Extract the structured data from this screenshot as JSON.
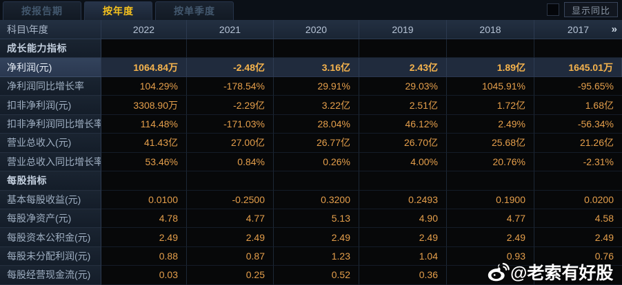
{
  "tabs": [
    {
      "label": "按报告期",
      "selected": false
    },
    {
      "label": "按年度",
      "selected": true
    },
    {
      "label": "按单季度",
      "selected": false
    }
  ],
  "controls": {
    "show_yoy_label": "显示同比",
    "yoy_checked": false
  },
  "table": {
    "corner_label": "科目\\年度",
    "years": [
      "2022",
      "2021",
      "2020",
      "2019",
      "2018",
      "2017"
    ],
    "more_years_icon": "»",
    "rows": [
      {
        "type": "section",
        "label": "成长能力指标",
        "values": [
          "",
          "",
          "",
          "",
          "",
          ""
        ]
      },
      {
        "type": "data",
        "highlight": true,
        "label": "净利润(元)",
        "values": [
          "1064.84万",
          "-2.48亿",
          "3.16亿",
          "2.43亿",
          "1.89亿",
          "1645.01万"
        ]
      },
      {
        "type": "data",
        "label": "净利润同比增长率",
        "values": [
          "104.29%",
          "-178.54%",
          "29.91%",
          "29.03%",
          "1045.91%",
          "-95.65%"
        ]
      },
      {
        "type": "data",
        "label": "扣非净利润(元)",
        "values": [
          "3308.90万",
          "-2.29亿",
          "3.22亿",
          "2.51亿",
          "1.72亿",
          "1.68亿"
        ]
      },
      {
        "type": "data",
        "label": "扣非净利润同比增长率",
        "values": [
          "114.48%",
          "-171.03%",
          "28.04%",
          "46.12%",
          "2.49%",
          "-56.34%"
        ]
      },
      {
        "type": "data",
        "label": "营业总收入(元)",
        "values": [
          "41.43亿",
          "27.00亿",
          "26.77亿",
          "26.70亿",
          "25.68亿",
          "21.26亿"
        ]
      },
      {
        "type": "data",
        "label": "营业总收入同比增长率",
        "values": [
          "53.46%",
          "0.84%",
          "0.26%",
          "4.00%",
          "20.76%",
          "-2.31%"
        ]
      },
      {
        "type": "section",
        "label": "每股指标",
        "values": [
          "",
          "",
          "",
          "",
          "",
          ""
        ]
      },
      {
        "type": "data",
        "label": "基本每股收益(元)",
        "values": [
          "0.0100",
          "-0.2500",
          "0.3200",
          "0.2493",
          "0.1900",
          "0.0200"
        ]
      },
      {
        "type": "data",
        "label": "每股净资产(元)",
        "values": [
          "4.78",
          "4.77",
          "5.13",
          "4.90",
          "4.77",
          "4.58"
        ]
      },
      {
        "type": "data",
        "label": "每股资本公积金(元)",
        "values": [
          "2.49",
          "2.49",
          "2.49",
          "2.49",
          "2.49",
          "2.49"
        ]
      },
      {
        "type": "data",
        "label": "每股未分配利润(元)",
        "values": [
          "0.88",
          "0.87",
          "1.23",
          "1.04",
          "0.93",
          "0.76"
        ]
      },
      {
        "type": "data",
        "label": "每股经营现金流(元)",
        "values": [
          "0.03",
          "0.25",
          "0.52",
          "0.36",
          "",
          ""
        ]
      }
    ]
  },
  "watermark": {
    "text": "@老索有好股",
    "icon": "weibo-logo"
  },
  "colors": {
    "accent_yellow": "#f5c11e",
    "value_orange": "#e59f4b",
    "highlight_value_orange": "#f6b44d",
    "header_bg": "#1f2b3c",
    "highlight_row_bg": "#202b3d",
    "label_col_bg": "#161f2b",
    "page_bg": "#060809"
  }
}
